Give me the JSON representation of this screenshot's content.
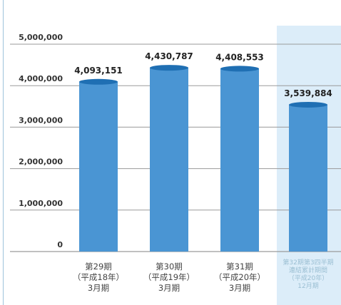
{
  "chart_data": {
    "type": "bar",
    "title": "",
    "xlabel": "",
    "ylabel": "",
    "ylim": [
      0,
      5000000
    ],
    "yticks": [
      0,
      1000000,
      2000000,
      3000000,
      4000000,
      5000000
    ],
    "ytick_labels": [
      "0",
      "1,000,000",
      "2,000,000",
      "3,000,000",
      "4,000,000",
      "5,000,000"
    ],
    "grid": true,
    "legend": "none",
    "categories": [
      "第29期",
      "第30期",
      "第31期",
      "第32期第3四半期連結累計期間"
    ],
    "category_labels": [
      [
        "第29期",
        "（平成18年）",
        "3月期"
      ],
      [
        "第30期",
        "（平成19年）",
        "3月期"
      ],
      [
        "第31期",
        "（平成20年）",
        "3月期"
      ],
      [
        "第32期第3四半期",
        "連結累計期間",
        "（平成20年）",
        "12月期"
      ]
    ],
    "values": [
      4093151,
      4430787,
      4408553,
      3539884
    ],
    "value_labels": [
      "4,093,151",
      "4,430,787",
      "4,408,553",
      "3,539,884"
    ],
    "highlighted_index": 3,
    "colors": {
      "bar": "#4a95d3",
      "bar_top": "#1f6fb3",
      "highlight_bg": "#dcedf9",
      "grid": "#9a9a9a",
      "dim_text": "#9bbfd3"
    }
  }
}
